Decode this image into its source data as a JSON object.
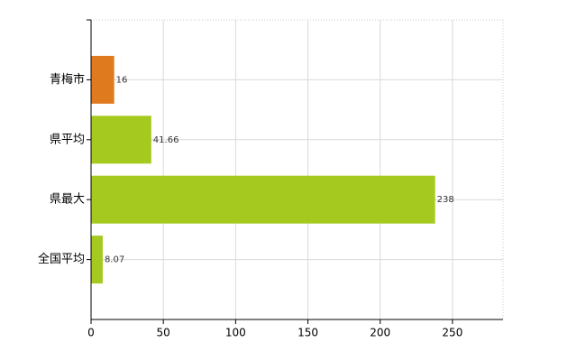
{
  "chart_data": {
    "type": "bar",
    "orientation": "horizontal",
    "categories": [
      "青梅市",
      "県平均",
      "県最大",
      "全国平均"
    ],
    "values": [
      16,
      41.66,
      238,
      8.07
    ],
    "colors": [
      "#e07a1f",
      "#a5c91e",
      "#a5c91e",
      "#a5c91e"
    ],
    "xlim": [
      0,
      285
    ],
    "xticks": [
      0,
      50,
      100,
      150,
      200,
      250
    ],
    "grid": true
  }
}
